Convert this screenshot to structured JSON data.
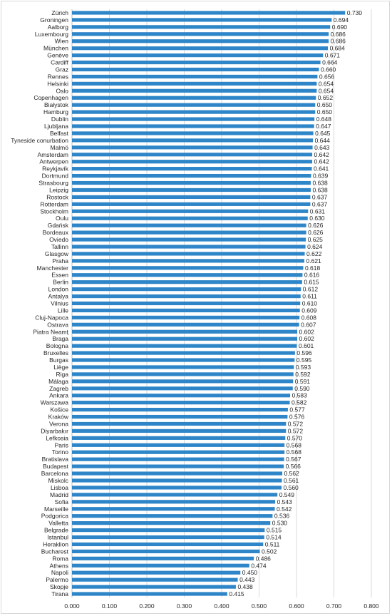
{
  "chart_data": {
    "type": "bar",
    "orientation": "horizontal",
    "title": "",
    "xlabel": "",
    "ylabel": "",
    "xlim": [
      0,
      0.8
    ],
    "x_ticks": [
      "0.000",
      "0.100",
      "0.200",
      "0.300",
      "0.400",
      "0.500",
      "0.600",
      "0.700",
      "0.800"
    ],
    "grid": true,
    "legend": "none",
    "bar_color": "#2e86c8",
    "categories": [
      "Zürich",
      "Groningen",
      "Aalborg",
      "Luxembourg",
      "Wien",
      "München",
      "Genève",
      "Cardiff",
      "Graz",
      "Rennes",
      "Helsinki",
      "Oslo",
      "Copenhagen",
      "Białystok",
      "Hamburg",
      "Dublin",
      "Ljubljana",
      "Belfast",
      "Tyneside conurbation",
      "Malmö",
      "Amsterdam",
      "Antwerpen",
      "Reykjavík",
      "Dortmund",
      "Strasbourg",
      "Leipzig",
      "Rostock",
      "Rotterdam",
      "Stockholm",
      "Oulu",
      "Gdańsk",
      "Bordeaux",
      "Oviedo",
      "Tallinn",
      "Glasgow",
      "Praha",
      "Manchester",
      "Essen",
      "Berlin",
      "London",
      "Antalya",
      "Vilnius",
      "Lille",
      "Cluj-Napoca",
      "Ostrava",
      "Piatra Neamț",
      "Braga",
      "Bologna",
      "Bruxelles",
      "Burgas",
      "Liège",
      "Riga",
      "Málaga",
      "Zagreb",
      "Ankara",
      "Warszawa",
      "Košice",
      "Kraków",
      "Verona",
      "Diyarbakır",
      "Lefkosia",
      "Paris",
      "Torino",
      "Bratislava",
      "Budapest",
      "Barcelona",
      "Miskolc",
      "Lisboa",
      "Madrid",
      "Sofia",
      "Marseille",
      "Podgorica",
      "Valletta",
      "Belgrade",
      "Istanbul",
      "Heraklion",
      "Bucharest",
      "Roma",
      "Athens",
      "Napoli",
      "Palermo",
      "Skopje",
      "Tirana"
    ],
    "values": [
      0.73,
      0.694,
      0.69,
      0.686,
      0.686,
      0.684,
      0.671,
      0.664,
      0.66,
      0.656,
      0.654,
      0.654,
      0.652,
      0.65,
      0.65,
      0.648,
      0.647,
      0.645,
      0.644,
      0.643,
      0.642,
      0.642,
      0.641,
      0.639,
      0.638,
      0.638,
      0.637,
      0.637,
      0.631,
      0.63,
      0.626,
      0.626,
      0.625,
      0.624,
      0.622,
      0.621,
      0.618,
      0.616,
      0.615,
      0.612,
      0.611,
      0.61,
      0.609,
      0.608,
      0.607,
      0.602,
      0.602,
      0.601,
      0.596,
      0.595,
      0.593,
      0.592,
      0.591,
      0.59,
      0.583,
      0.582,
      0.577,
      0.576,
      0.572,
      0.572,
      0.57,
      0.568,
      0.568,
      0.567,
      0.566,
      0.562,
      0.561,
      0.56,
      0.549,
      0.543,
      0.542,
      0.536,
      0.53,
      0.515,
      0.514,
      0.511,
      0.502,
      0.486,
      0.474,
      0.45,
      0.443,
      0.438,
      0.415
    ],
    "value_labels": [
      "0.730",
      "0.694",
      "0.690",
      "0.686",
      "0.686",
      "0.684",
      "0.671",
      "0.664",
      "0.660",
      "0.656",
      "0.654",
      "0.654",
      "0.652",
      "0.650",
      "0.650",
      "0.648",
      "0.647",
      "0.645",
      "0.644",
      "0.643",
      "0.642",
      "0.642",
      "0.641",
      "0.639",
      "0.638",
      "0.638",
      "0.637",
      "0.637",
      "0.631",
      "0.630",
      "0.626",
      "0.626",
      "0.625",
      "0.624",
      "0.622",
      "0.621",
      "0.618",
      "0.616",
      "0.615",
      "0.612",
      "0.611",
      "0.610",
      "0.609",
      "0.608",
      "0.607",
      "0.602",
      "0.602",
      "0.601",
      "0.596",
      "0.595",
      "0.593",
      "0.592",
      "0.591",
      "0.590",
      "0.583",
      "0.582",
      "0.577",
      "0.576",
      "0.572",
      "0.572",
      "0.570",
      "0.568",
      "0.568",
      "0.567",
      "0.566",
      "0.562",
      "0.561",
      "0.560",
      "0.549",
      "0.543",
      "0.542",
      "0.536",
      "0.530",
      "0.515",
      "0.514",
      "0.511",
      "0.502",
      "0.486",
      "0.474",
      "0.450",
      "0.443",
      "0.438",
      "0.415"
    ]
  }
}
